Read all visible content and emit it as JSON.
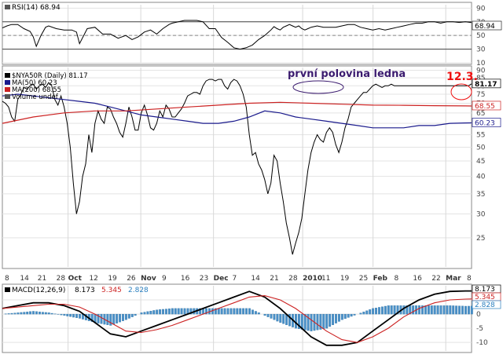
{
  "chart_data": [
    {
      "type": "line",
      "panel": "rsi",
      "legend_label": "RSI(14) 68.94",
      "last_value_label": "68.94",
      "yticks": [
        90,
        70,
        50,
        30,
        10
      ],
      "ylim": [
        10,
        95
      ],
      "reference_lines": [
        70,
        50,
        30
      ],
      "grid": true,
      "series": [
        {
          "color": "#000000",
          "x": [
            0,
            3,
            6,
            10,
            14,
            18,
            20,
            22,
            25,
            28,
            30,
            35,
            40,
            45,
            48,
            50,
            55,
            60,
            65,
            70,
            75,
            80,
            84,
            88,
            92,
            96,
            100,
            104,
            108,
            110,
            114,
            118,
            122,
            126,
            130,
            134,
            138,
            142,
            146,
            150,
            154,
            158,
            162,
            166,
            170,
            174,
            176,
            178,
            180,
            182,
            184,
            186,
            188,
            190,
            192,
            194,
            196,
            198,
            200,
            204,
            208,
            212,
            216,
            220,
            224,
            228,
            232,
            236,
            240,
            244,
            248,
            252,
            256,
            260,
            264,
            268,
            272,
            276,
            280,
            284,
            288,
            292,
            296,
            300,
            304
          ],
          "y": [
            61,
            64,
            66,
            66,
            60,
            56,
            48,
            34,
            50,
            62,
            64,
            60,
            58,
            58,
            55,
            38,
            60,
            62,
            52,
            52,
            46,
            50,
            44,
            48,
            55,
            58,
            52,
            60,
            66,
            68,
            70,
            72,
            72,
            72,
            70,
            60,
            60,
            47,
            40,
            32,
            30,
            32,
            36,
            44,
            50,
            58,
            63,
            60,
            58,
            62,
            64,
            66,
            64,
            62,
            64,
            60,
            58,
            60,
            62,
            64,
            62,
            62,
            62,
            64,
            66,
            66,
            62,
            60,
            58,
            60,
            58,
            60,
            62,
            64,
            66,
            68,
            68,
            70,
            70,
            68,
            70,
            70,
            69,
            70,
            68.94
          ]
        }
      ]
    },
    {
      "type": "line",
      "panel": "price",
      "legend": [
        {
          "label": "$NYA50R (Daily) 81.17",
          "color": "#000000"
        },
        {
          "label": "MA(50) 60.23",
          "color": "#1a1a8c"
        },
        {
          "label": "MA(200) 68.55",
          "color": "#cc2222"
        },
        {
          "label": "Volume undef",
          "color": "#555555"
        }
      ],
      "price_tags": [
        {
          "label": "81.17",
          "value": 81.17,
          "color": "#000000",
          "bg": "#ffffff"
        },
        {
          "label": "68.55",
          "value": 68.55,
          "color": "#cc2222",
          "bg": "#ffffff"
        },
        {
          "label": "60.23",
          "value": 60.23,
          "color": "#1a1a8c",
          "bg": "#ffffff"
        }
      ],
      "yticks": [
        90,
        85,
        80,
        75,
        70,
        65,
        60,
        55,
        50,
        45,
        40,
        35,
        30,
        25
      ],
      "ylim": [
        20,
        92
      ],
      "y_scale": "log",
      "grid": true,
      "annotations": [
        {
          "text": "první polovina ledna",
          "color": "#3a1a6e"
        },
        {
          "text": "12.3.",
          "color": "#ee1111"
        }
      ],
      "series": [
        {
          "name": "$NYA50R",
          "color": "#000000",
          "x": [
            0,
            2,
            4,
            6,
            8,
            10,
            12,
            14,
            16,
            18,
            20,
            22,
            24,
            26,
            28,
            30,
            32,
            34,
            36,
            38,
            40,
            42,
            44,
            46,
            48,
            50,
            52,
            54,
            56,
            58,
            60,
            62,
            64,
            66,
            68,
            70,
            72,
            74,
            76,
            78,
            80,
            82,
            84,
            86,
            88,
            90,
            92,
            94,
            96,
            98,
            100,
            102,
            104,
            106,
            108,
            110,
            112,
            114,
            116,
            118,
            120,
            122,
            124,
            126,
            128,
            130,
            132,
            134,
            136,
            138,
            140,
            142,
            144,
            146,
            148,
            150,
            152,
            154,
            156,
            158,
            160,
            162,
            164,
            166,
            168,
            170,
            172,
            174,
            176,
            178,
            180,
            182,
            184,
            186,
            188,
            190,
            192,
            194,
            196,
            198,
            200,
            202,
            204,
            206,
            208,
            210,
            212,
            214,
            216,
            218,
            220,
            222,
            224,
            226,
            228,
            230,
            232,
            234,
            236,
            238,
            240,
            242,
            244,
            246,
            248,
            250,
            252,
            254,
            256,
            258,
            260,
            262,
            264,
            266,
            268,
            270,
            272,
            274,
            276,
            278,
            280,
            282,
            284,
            286,
            288,
            290,
            292,
            294,
            296,
            298,
            300,
            302,
            304
          ],
          "y": [
            71,
            70,
            68,
            63,
            61,
            72,
            75,
            79,
            78,
            80,
            81,
            78,
            80,
            81,
            79,
            82,
            80,
            72,
            69,
            74,
            68,
            60,
            50,
            38,
            30,
            33,
            40,
            44,
            55,
            48,
            60,
            66,
            62,
            60,
            68,
            67,
            63,
            60,
            56,
            54,
            60,
            68,
            63,
            57,
            57,
            65,
            69,
            64,
            58,
            57,
            60,
            66,
            63,
            69,
            67,
            63,
            63,
            65,
            67,
            70,
            74,
            75,
            76,
            76,
            75,
            80,
            83,
            84,
            84,
            83,
            84,
            84,
            80,
            78,
            82,
            84,
            83,
            80,
            75,
            68,
            55,
            47,
            48,
            44,
            42,
            39,
            35,
            38,
            47,
            45,
            38,
            33,
            28,
            25,
            22,
            24,
            26,
            29,
            35,
            42,
            48,
            52,
            55,
            53,
            52,
            56,
            58,
            56,
            51,
            48,
            52,
            58,
            62,
            68,
            70,
            72,
            74,
            76,
            76,
            78,
            80,
            81,
            80,
            79,
            80,
            80,
            81,
            80,
            80,
            80,
            80,
            80,
            80,
            80,
            80,
            80,
            80,
            80,
            80,
            80,
            80,
            80,
            80,
            80,
            80,
            80,
            80,
            80,
            80,
            80,
            80,
            80,
            81.17
          ]
        },
        {
          "name": "MA(50)",
          "color": "#1a1a8c",
          "x": [
            0,
            10,
            20,
            30,
            40,
            50,
            60,
            70,
            80,
            90,
            100,
            110,
            120,
            130,
            140,
            150,
            160,
            170,
            180,
            190,
            200,
            210,
            220,
            230,
            240,
            250,
            260,
            270,
            280,
            290,
            300,
            304
          ],
          "y": [
            74,
            75,
            74,
            73,
            72,
            71,
            70,
            68,
            66,
            64,
            63,
            62,
            61,
            60,
            60,
            61,
            63,
            66,
            65,
            63,
            62,
            61,
            60,
            59,
            58,
            58,
            58,
            59,
            59,
            60,
            60.2,
            60.23
          ]
        },
        {
          "name": "MA(200)",
          "color": "#cc2222",
          "x": [
            0,
            20,
            40,
            60,
            80,
            100,
            120,
            140,
            160,
            180,
            200,
            220,
            240,
            260,
            280,
            300,
            304
          ],
          "y": [
            60,
            63,
            65,
            66,
            66,
            67,
            68,
            69,
            70,
            70.5,
            70,
            69.5,
            69,
            68.9,
            68.7,
            68.6,
            68.55
          ]
        }
      ]
    },
    {
      "type": "line",
      "panel": "macd",
      "legend": [
        {
          "label": "MACD(12,26,9)",
          "color": "#000000"
        },
        {
          "label": "8.173",
          "color": "#000000"
        },
        {
          "label": "5.345",
          "color": "#cc2222"
        },
        {
          "label": "2.828",
          "color": "#2a7fbf"
        }
      ],
      "price_tags": [
        {
          "label": "8.173",
          "value": 8.173,
          "color": "#000000",
          "bg": "#ffffff"
        },
        {
          "label": "5.345",
          "value": 5.345,
          "color": "#cc2222",
          "bg": "#ffffff"
        },
        {
          "label": "2.828",
          "value": 2.828,
          "color": "#2a7fbf",
          "bg": "#ffffff"
        }
      ],
      "yticks": [
        5,
        0,
        -5,
        -10
      ],
      "ylim": [
        -13,
        10
      ],
      "grid": true,
      "series": [
        {
          "name": "MACD",
          "color": "#000000",
          "x": [
            0,
            10,
            20,
            30,
            40,
            50,
            60,
            70,
            80,
            90,
            100,
            110,
            120,
            130,
            140,
            150,
            160,
            170,
            180,
            190,
            200,
            210,
            220,
            230,
            240,
            250,
            260,
            270,
            280,
            290,
            300,
            304
          ],
          "y": [
            2,
            3,
            4,
            4,
            3,
            1,
            -3,
            -7,
            -8,
            -6,
            -4,
            -2,
            0,
            2,
            4,
            6,
            8,
            6,
            2,
            -3,
            -8,
            -11,
            -11,
            -10,
            -6,
            -2,
            2,
            5,
            7,
            8,
            8.17,
            8.173
          ]
        },
        {
          "name": "Signal",
          "color": "#cc2222",
          "x": [
            0,
            10,
            20,
            30,
            40,
            50,
            60,
            70,
            80,
            90,
            100,
            110,
            120,
            130,
            140,
            150,
            160,
            170,
            180,
            190,
            200,
            210,
            220,
            230,
            240,
            250,
            260,
            270,
            280,
            290,
            300,
            304
          ],
          "y": [
            2,
            2.5,
            3,
            3.5,
            3.5,
            2.5,
            0,
            -3,
            -6,
            -6.5,
            -5.5,
            -4,
            -2,
            0,
            2,
            4,
            6,
            6.5,
            5,
            2,
            -2,
            -6,
            -9,
            -10,
            -8,
            -5,
            -1,
            2,
            4,
            5,
            5.3,
            5.345
          ]
        },
        {
          "name": "Histogram",
          "color": "#2a7fbf",
          "x": [
            0,
            10,
            20,
            30,
            40,
            50,
            60,
            70,
            80,
            90,
            100,
            110,
            120,
            130,
            140,
            150,
            160,
            170,
            180,
            190,
            200,
            210,
            220,
            230,
            240,
            250,
            260,
            270,
            280,
            290,
            300,
            304
          ],
          "y": [
            0,
            0.5,
            1,
            0.5,
            -0.5,
            -1.5,
            -3,
            -4,
            -2,
            0.5,
            1.5,
            2,
            2,
            2,
            2,
            2,
            2,
            -0.5,
            -3,
            -5,
            -6,
            -5,
            -2,
            0,
            2,
            3,
            3,
            3,
            3,
            3,
            2.8,
            2.828
          ]
        }
      ]
    },
    {
      "type": "line",
      "panel": "time_axis",
      "x_tick_labels": [
        {
          "label": "8",
          "x": 2,
          "bold": false
        },
        {
          "label": "14",
          "x": 15,
          "bold": false
        },
        {
          "label": "21",
          "x": 30,
          "bold": false
        },
        {
          "label": "28",
          "x": 46,
          "bold": false
        },
        {
          "label": "Oct",
          "x": 56,
          "bold": true
        },
        {
          "label": "12",
          "x": 74,
          "bold": false
        },
        {
          "label": "19",
          "x": 90,
          "bold": false
        },
        {
          "label": "26",
          "x": 106,
          "bold": false
        },
        {
          "label": "Nov",
          "x": 118,
          "bold": true
        },
        {
          "label": "9",
          "x": 136,
          "bold": false
        },
        {
          "label": "16",
          "x": 152,
          "bold": false
        },
        {
          "label": "23",
          "x": 168,
          "bold": false
        },
        {
          "label": "Dec",
          "x": 180,
          "bold": true
        },
        {
          "label": "7",
          "x": 196,
          "bold": false
        },
        {
          "label": "14",
          "x": 212,
          "bold": false
        },
        {
          "label": "21",
          "x": 228,
          "bold": false
        },
        {
          "label": "28",
          "x": 244,
          "bold": false
        },
        {
          "label": "2010",
          "x": 256,
          "bold": true
        },
        {
          "label": "11",
          "x": 272,
          "bold": false
        },
        {
          "label": "19",
          "x": 288,
          "bold": false
        },
        {
          "label": "25",
          "x": 304,
          "bold": false
        },
        {
          "label": "Feb",
          "x": 316,
          "bold": true
        },
        {
          "label": "8",
          "x": 334,
          "bold": false
        },
        {
          "label": "16",
          "x": 350,
          "bold": false
        },
        {
          "label": "22",
          "x": 366,
          "bold": false
        },
        {
          "label": "Mar",
          "x": 378,
          "bold": true
        },
        {
          "label": "8",
          "x": 396,
          "bold": false
        }
      ]
    }
  ]
}
